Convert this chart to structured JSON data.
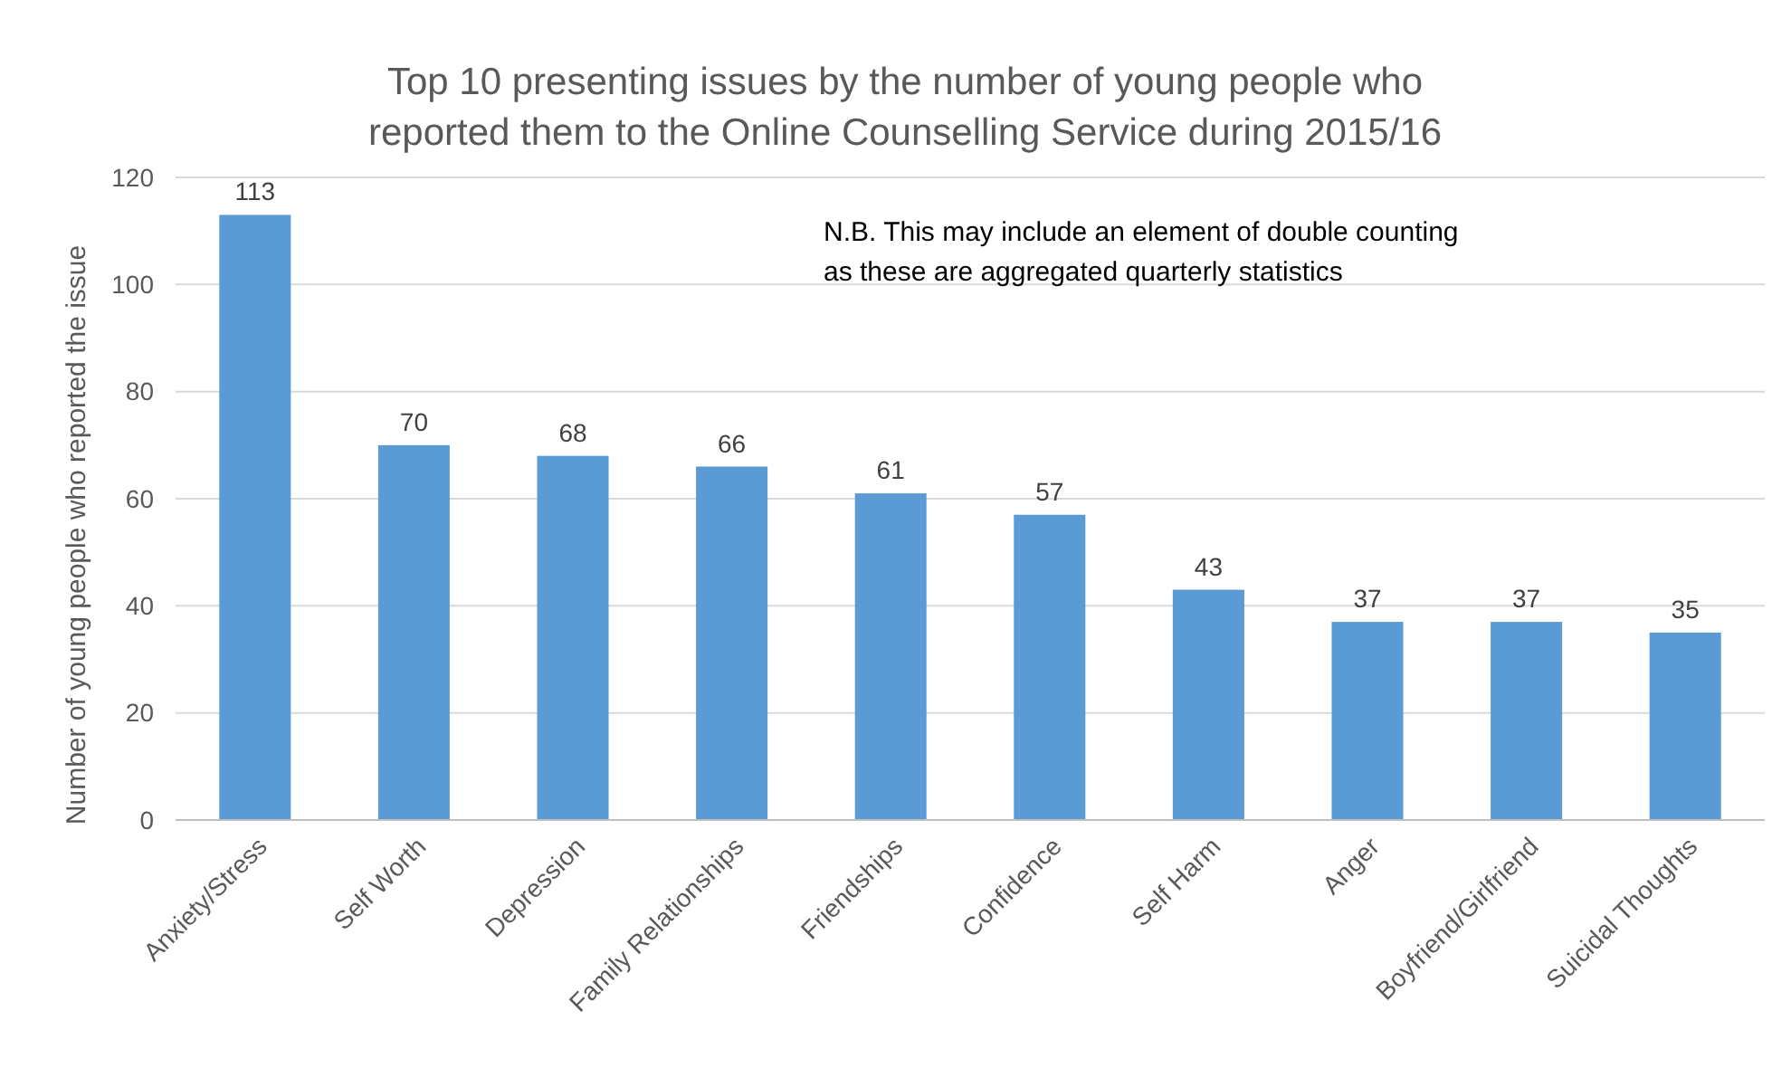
{
  "chart_data": {
    "type": "bar",
    "title": "Top 10 presenting issues by the number of young people who\nreported them to the Online Counselling Service during 2015/16",
    "ylabel": "Number of young people who reported the issue",
    "categories": [
      "Anxiety/Stress",
      "Self Worth",
      "Depression",
      "Family Relationships",
      "Friendships",
      "Confidence",
      "Self Harm",
      "Anger",
      "Boyfriend/Girlfriend",
      "Suicidal Thoughts"
    ],
    "values": [
      113,
      70,
      68,
      66,
      61,
      57,
      43,
      37,
      37,
      35
    ],
    "color": "#5b9bd5",
    "ylim": [
      0,
      120
    ],
    "yticks": [
      0,
      20,
      40,
      60,
      80,
      100,
      120
    ],
    "grid": "y",
    "data_labels": true,
    "annotations": [
      "N.B. This may include  an element of double counting\nas these are aggregated quarterly statistics"
    ]
  }
}
